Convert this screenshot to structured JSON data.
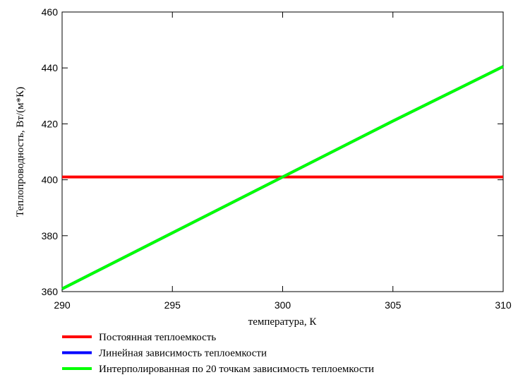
{
  "chart_data": {
    "type": "line",
    "x_label": "температура, К",
    "y_label": "Теплопроводность, Вт/(м*К)",
    "x": [
      290,
      295,
      300,
      305,
      310
    ],
    "series": [
      {
        "name": "Постоянная теплоемкость",
        "color": "#ff0000",
        "values": [
          401,
          401,
          401,
          401,
          401
        ]
      },
      {
        "name": "Линейная зависимость теплоемкости",
        "color": "#0000ff",
        "values": [
          361,
          381,
          401,
          421,
          440.5
        ]
      },
      {
        "name": "Интерполированная по 20 точкам зависимость теплоемкости",
        "color": "#00ff00",
        "values": [
          361,
          381,
          401,
          421,
          440.5
        ]
      }
    ],
    "xlim": [
      290,
      310
    ],
    "xticks": [
      290,
      295,
      300,
      305,
      310
    ],
    "ylim": [
      360,
      460
    ],
    "yticks": [
      360,
      380,
      400,
      420,
      440,
      460
    ],
    "grid": false,
    "legend": "bottom"
  }
}
